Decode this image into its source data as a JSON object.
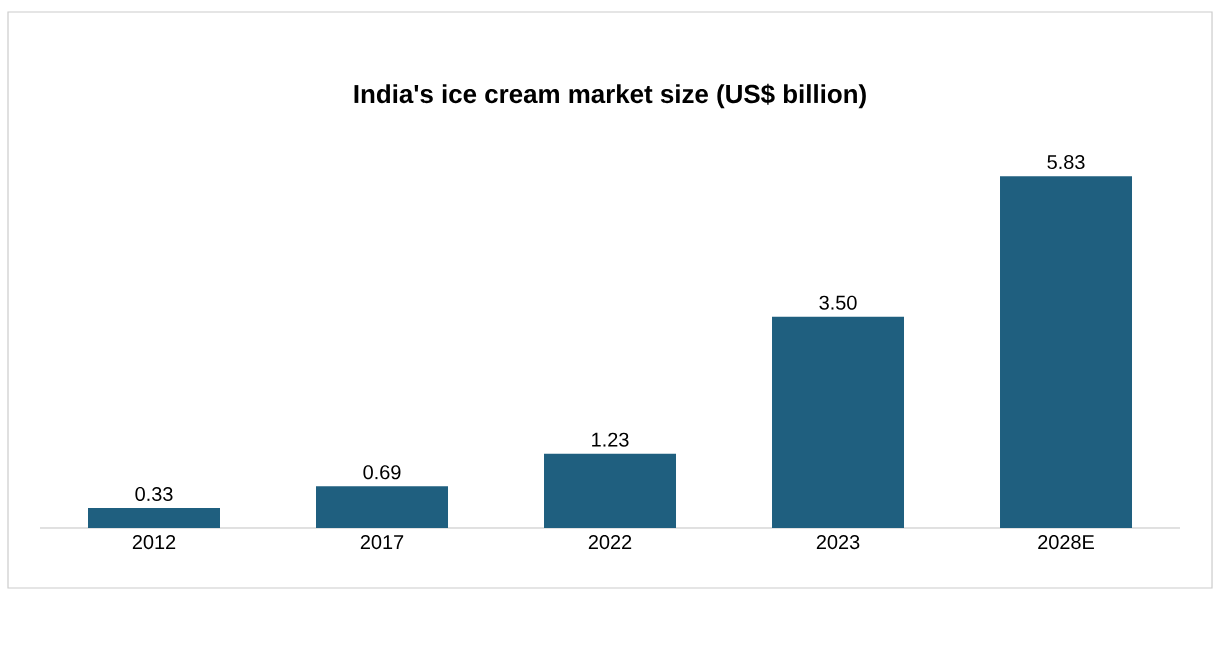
{
  "chart_data": {
    "type": "bar",
    "title": "India's ice cream market size (US$ billion)",
    "categories": [
      "2012",
      "2017",
      "2022",
      "2023",
      "2028E"
    ],
    "values": [
      0.33,
      0.69,
      1.23,
      3.5,
      5.83
    ],
    "value_labels": [
      "0.33",
      "0.69",
      "1.23",
      "3.50",
      "5.83"
    ],
    "color": "#1f5f7f"
  }
}
